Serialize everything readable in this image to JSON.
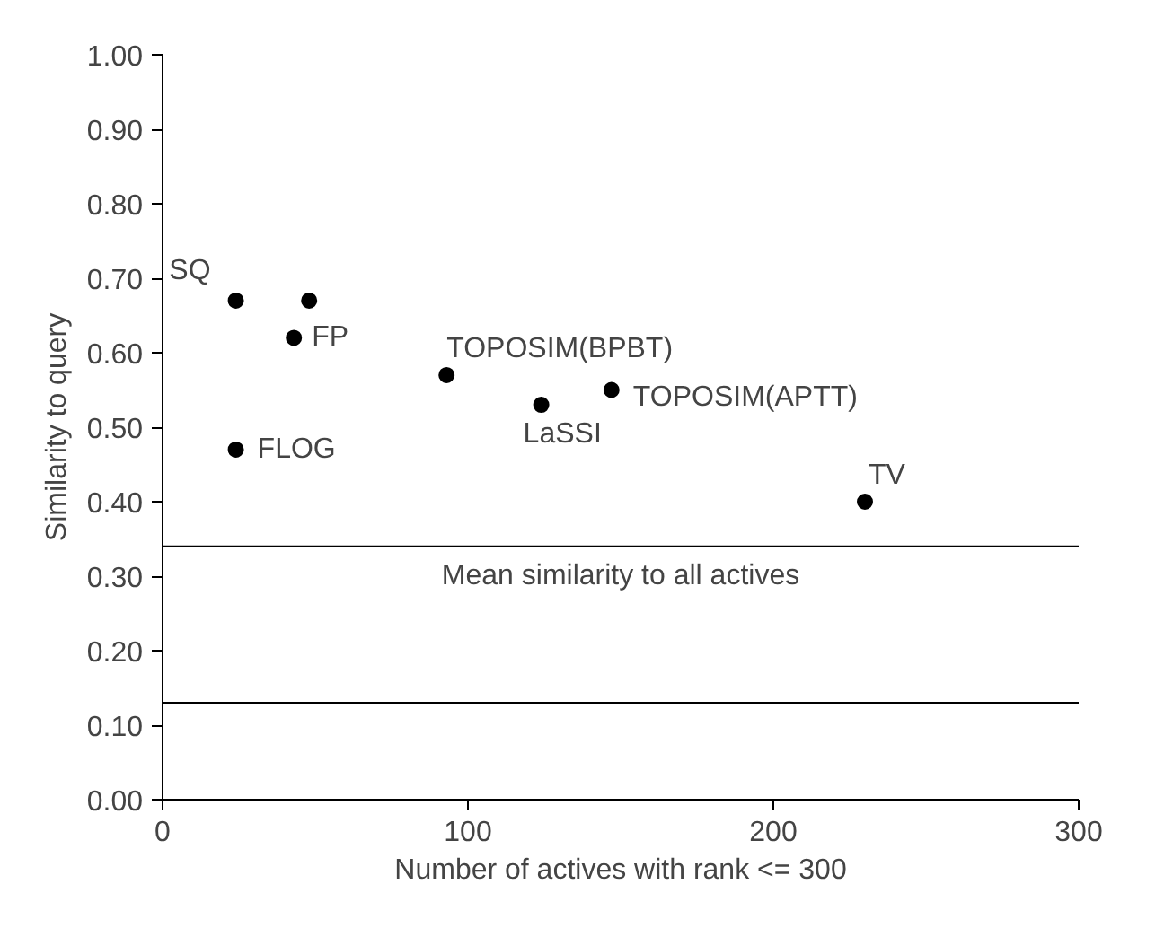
{
  "chart_data": {
    "type": "scatter",
    "xlabel": "Number of actives with rank <= 300",
    "ylabel": "Similarity to query",
    "x": [
      24,
      48,
      43,
      24,
      93,
      124,
      147,
      230
    ],
    "series": [
      {
        "color": "#000000",
        "values": [
          0.67,
          0.67,
          0.62,
          0.47,
          0.57,
          0.53,
          0.55,
          0.4
        ]
      }
    ],
    "annotations": [
      {
        "text": "SQ",
        "x": 24,
        "y": 0.67
      },
      {
        "text": "FP",
        "x": 43,
        "y": 0.62
      },
      {
        "text": "FLOG",
        "x": 24,
        "y": 0.47
      },
      {
        "text": "TOPOSIM(BPBT)",
        "x": 93,
        "y": 0.57
      },
      {
        "text": "LaSSI",
        "x": 124,
        "y": 0.53
      },
      {
        "text": "TOPOSIM(APTT)",
        "x": 147,
        "y": 0.55
      },
      {
        "text": "TV",
        "x": 230,
        "y": 0.4
      }
    ],
    "ref_lines": [
      {
        "axis": "y",
        "value": 0.34,
        "label": "Mean similarity to all actives",
        "color": "#000000"
      },
      {
        "axis": "y",
        "value": 0.13,
        "color": "#000000"
      }
    ],
    "xlim": [
      0,
      300
    ],
    "xticks": [
      0,
      100,
      200,
      300
    ],
    "ylim": [
      0,
      1
    ],
    "yticks": [
      {
        "value": 0,
        "label": "0.00"
      },
      {
        "value": 0.1,
        "label": "0.10"
      },
      {
        "value": 0.2,
        "label": "0.20"
      },
      {
        "value": 0.3,
        "label": "0.30"
      },
      {
        "value": 0.4,
        "label": "0.40"
      },
      {
        "value": 0.5,
        "label": "0.50"
      },
      {
        "value": 0.6,
        "label": "0.60"
      },
      {
        "value": 0.7,
        "label": "0.70"
      },
      {
        "value": 0.8,
        "label": "0.80"
      },
      {
        "value": 0.9,
        "label": "0.90"
      },
      {
        "value": 1,
        "label": "1.00"
      }
    ],
    "grid": false,
    "marker": "circle"
  }
}
